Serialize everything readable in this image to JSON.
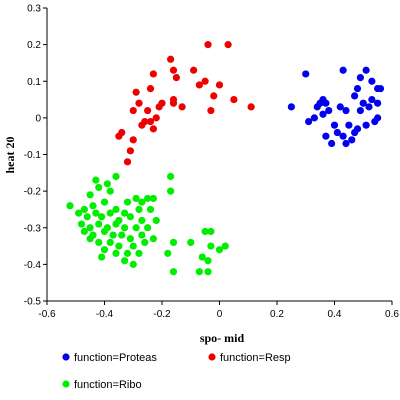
{
  "chart_data": {
    "type": "scatter",
    "xlabel": "spo- mid",
    "ylabel": "heat 20",
    "xlim": [
      -0.6,
      0.6
    ],
    "ylim": [
      -0.5,
      0.3
    ],
    "x_ticks": [
      "-0.6",
      "-0.4",
      "-0.2",
      "0",
      "0.2",
      "0.4",
      "0.6"
    ],
    "y_ticks": [
      "0.3",
      "0.2",
      "0.1",
      "0",
      "-0.1",
      "-0.2",
      "-0.3",
      "-0.4",
      "-0.5"
    ],
    "grid": false,
    "legend_position": "bottom",
    "series": [
      {
        "name": "function=Proteas",
        "color": "#0000ee",
        "points": [
          [
            0.3,
            0.12
          ],
          [
            0.43,
            0.13
          ],
          [
            0.48,
            0.08
          ],
          [
            0.49,
            0.11
          ],
          [
            0.51,
            0.13
          ],
          [
            0.53,
            0.1
          ],
          [
            0.55,
            0.08
          ],
          [
            0.56,
            0.08
          ],
          [
            0.25,
            0.03
          ],
          [
            0.35,
            0.04
          ],
          [
            0.36,
            0.05
          ],
          [
            0.37,
            0.04
          ],
          [
            0.38,
            0.02
          ],
          [
            0.36,
            0.01
          ],
          [
            0.34,
            0.03
          ],
          [
            0.33,
            0.0
          ],
          [
            0.31,
            -0.01
          ],
          [
            0.42,
            0.03
          ],
          [
            0.44,
            0.02
          ],
          [
            0.47,
            0.06
          ],
          [
            0.49,
            0.02
          ],
          [
            0.5,
            0.04
          ],
          [
            0.52,
            0.03
          ],
          [
            0.53,
            0.05
          ],
          [
            0.55,
            0.04
          ],
          [
            0.4,
            -0.02
          ],
          [
            0.41,
            -0.04
          ],
          [
            0.43,
            -0.05
          ],
          [
            0.44,
            -0.07
          ],
          [
            0.46,
            -0.06
          ],
          [
            0.48,
            -0.03
          ],
          [
            0.51,
            -0.02
          ],
          [
            0.54,
            -0.01
          ],
          [
            0.55,
            0.0
          ],
          [
            0.37,
            -0.05
          ],
          [
            0.45,
            -0.02
          ],
          [
            0.39,
            -0.07
          ],
          [
            0.47,
            -0.04
          ]
        ]
      },
      {
        "name": "function=Resp",
        "color": "#ee0000",
        "points": [
          [
            -0.17,
            0.16
          ],
          [
            -0.04,
            0.2
          ],
          [
            0.03,
            0.2
          ],
          [
            -0.16,
            0.13
          ],
          [
            -0.15,
            0.11
          ],
          [
            -0.09,
            0.13
          ],
          [
            -0.23,
            0.12
          ],
          [
            -0.05,
            0.1
          ],
          [
            0.0,
            0.09
          ],
          [
            -0.07,
            0.09
          ],
          [
            -0.24,
            0.08
          ],
          [
            -0.29,
            0.07
          ],
          [
            -0.2,
            0.04
          ],
          [
            -0.16,
            0.05
          ],
          [
            -0.28,
            0.04
          ],
          [
            -0.21,
            0.03
          ],
          [
            -0.13,
            0.03
          ],
          [
            -0.16,
            0.04
          ],
          [
            -0.02,
            0.06
          ],
          [
            0.05,
            0.05
          ],
          [
            0.11,
            0.03
          ],
          [
            -0.03,
            0.02
          ],
          [
            -0.3,
            0.02
          ],
          [
            -0.25,
            0.02
          ],
          [
            -0.22,
            0.0
          ],
          [
            -0.26,
            -0.01
          ],
          [
            -0.24,
            -0.01
          ],
          [
            -0.27,
            -0.02
          ],
          [
            -0.23,
            -0.03
          ],
          [
            -0.34,
            -0.04
          ],
          [
            -0.35,
            -0.05
          ],
          [
            -0.3,
            -0.06
          ],
          [
            -0.31,
            -0.09
          ],
          [
            -0.32,
            -0.12
          ]
        ]
      },
      {
        "name": "function=Ribo",
        "color": "#00ee00",
        "points": [
          [
            -0.36,
            -0.16
          ],
          [
            -0.17,
            -0.16
          ],
          [
            -0.43,
            -0.17
          ],
          [
            -0.39,
            -0.18
          ],
          [
            -0.42,
            -0.19
          ],
          [
            -0.38,
            -0.2
          ],
          [
            -0.45,
            -0.21
          ],
          [
            -0.17,
            -0.2
          ],
          [
            -0.29,
            -0.22
          ],
          [
            -0.25,
            -0.22
          ],
          [
            -0.32,
            -0.23
          ],
          [
            -0.27,
            -0.23
          ],
          [
            -0.23,
            -0.22
          ],
          [
            -0.52,
            -0.24
          ],
          [
            -0.47,
            -0.25
          ],
          [
            -0.44,
            -0.24
          ],
          [
            -0.4,
            -0.23
          ],
          [
            -0.36,
            -0.25
          ],
          [
            -0.33,
            -0.26
          ],
          [
            -0.28,
            -0.25
          ],
          [
            -0.24,
            -0.25
          ],
          [
            -0.49,
            -0.26
          ],
          [
            -0.46,
            -0.27
          ],
          [
            -0.43,
            -0.26
          ],
          [
            -0.41,
            -0.27
          ],
          [
            -0.38,
            -0.26
          ],
          [
            -0.35,
            -0.28
          ],
          [
            -0.31,
            -0.27
          ],
          [
            -0.27,
            -0.28
          ],
          [
            -0.22,
            -0.28
          ],
          [
            -0.48,
            -0.29
          ],
          [
            -0.45,
            -0.3
          ],
          [
            -0.42,
            -0.29
          ],
          [
            -0.39,
            -0.3
          ],
          [
            -0.36,
            -0.29
          ],
          [
            -0.33,
            -0.3
          ],
          [
            -0.29,
            -0.3
          ],
          [
            -0.25,
            -0.3
          ],
          [
            -0.47,
            -0.31
          ],
          [
            -0.44,
            -0.32
          ],
          [
            -0.4,
            -0.31
          ],
          [
            -0.37,
            -0.32
          ],
          [
            -0.34,
            -0.32
          ],
          [
            -0.31,
            -0.33
          ],
          [
            -0.27,
            -0.32
          ],
          [
            -0.23,
            -0.33
          ],
          [
            -0.45,
            -0.33
          ],
          [
            -0.42,
            -0.34
          ],
          [
            -0.38,
            -0.34
          ],
          [
            -0.35,
            -0.35
          ],
          [
            -0.3,
            -0.35
          ],
          [
            -0.26,
            -0.34
          ],
          [
            -0.4,
            -0.36
          ],
          [
            -0.36,
            -0.37
          ],
          [
            -0.32,
            -0.37
          ],
          [
            -0.28,
            -0.37
          ],
          [
            -0.41,
            -0.38
          ],
          [
            -0.33,
            -0.39
          ],
          [
            -0.3,
            -0.4
          ],
          [
            -0.05,
            -0.31
          ],
          [
            -0.03,
            -0.31
          ],
          [
            -0.16,
            -0.34
          ],
          [
            -0.1,
            -0.34
          ],
          [
            -0.03,
            -0.35
          ],
          [
            0.0,
            -0.36
          ],
          [
            0.02,
            -0.35
          ],
          [
            -0.18,
            -0.37
          ],
          [
            -0.06,
            -0.38
          ],
          [
            -0.04,
            -0.39
          ],
          [
            -0.16,
            -0.42
          ],
          [
            -0.07,
            -0.42
          ],
          [
            -0.04,
            -0.42
          ]
        ]
      }
    ]
  }
}
